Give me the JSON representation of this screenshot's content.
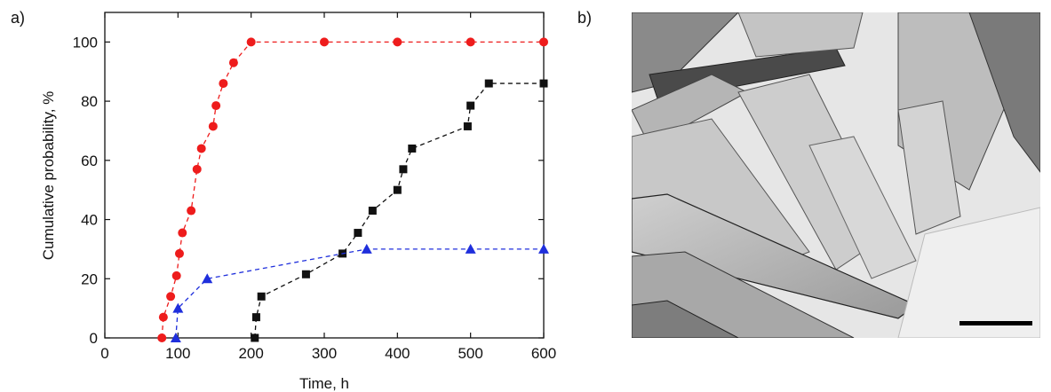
{
  "panel_labels": {
    "a": "a)",
    "b": "b)"
  },
  "chart_data": {
    "type": "line",
    "xlabel": "Time, h",
    "ylabel": "Cumulative probability, %",
    "xlim": [
      0,
      600
    ],
    "ylim": [
      0,
      110
    ],
    "xticks": [
      0,
      100,
      200,
      300,
      400,
      500,
      600
    ],
    "yticks": [
      0,
      20,
      40,
      60,
      80,
      100
    ],
    "grid": false,
    "series": [
      {
        "color": "#ee1c1c",
        "marker": "circle",
        "line": "dashed",
        "x": [
          78,
          80,
          90,
          98,
          102,
          106,
          118,
          126,
          132,
          148,
          152,
          162,
          176,
          200,
          300,
          400,
          500,
          600
        ],
        "y": [
          0,
          7,
          14,
          21,
          28.5,
          35.5,
          43,
          57,
          64,
          71.5,
          78.5,
          86,
          93,
          100,
          100,
          100,
          100,
          100
        ]
      },
      {
        "color": "#111111",
        "marker": "square",
        "line": "dashed",
        "x": [
          205,
          207,
          214,
          275,
          325,
          346,
          366,
          400,
          408,
          420,
          496,
          500,
          525,
          600
        ],
        "y": [
          0,
          7,
          14,
          21.5,
          28.5,
          35.5,
          43,
          50,
          57,
          64,
          71.5,
          78.5,
          86,
          86
        ]
      },
      {
        "color": "#1f2fdc",
        "marker": "triangle",
        "line": "dashed",
        "x": [
          97,
          100,
          140,
          358,
          500,
          600
        ],
        "y": [
          0,
          10,
          20,
          30,
          30,
          30
        ]
      }
    ]
  },
  "micrograph": {
    "description_icon": "crystal-micrograph-image",
    "scale_bar_color": "#000000"
  }
}
